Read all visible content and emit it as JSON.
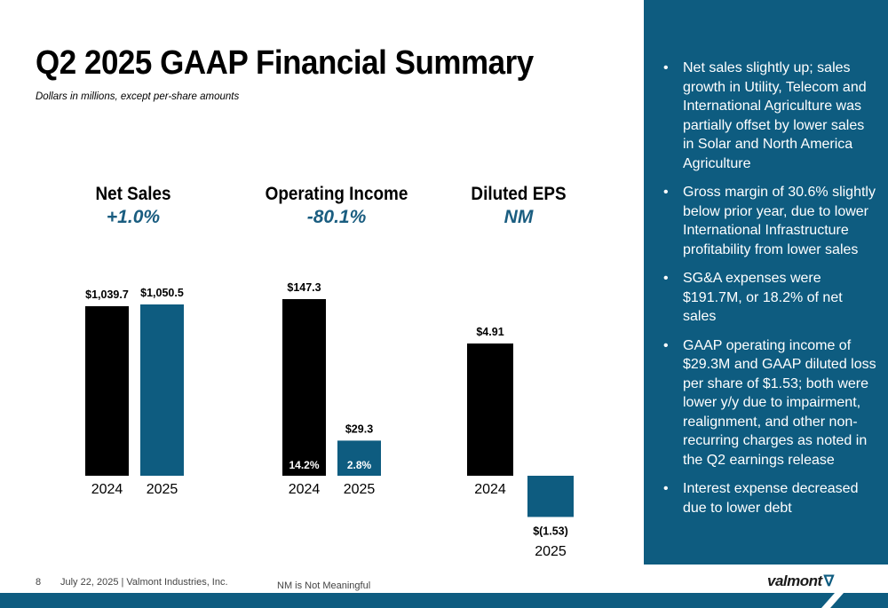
{
  "title": "Q2 2025 GAAP Financial Summary",
  "subtitle": "Dollars in millions, except per-share amounts",
  "chart_data": [
    {
      "type": "bar",
      "title": "Net Sales",
      "change": "+1.0%",
      "categories": [
        "2024",
        "2025"
      ],
      "values": [
        1039.7,
        1050.5
      ],
      "value_labels": [
        "$1,039.7",
        "$1,050.5"
      ],
      "inner_labels": [
        "",
        ""
      ],
      "ylim": [
        0,
        1100
      ]
    },
    {
      "type": "bar",
      "title": "Operating Income",
      "change": "-80.1%",
      "categories": [
        "2024",
        "2025"
      ],
      "values": [
        147.3,
        29.3
      ],
      "value_labels": [
        "$147.3",
        "$29.3"
      ],
      "inner_labels": [
        "14.2%",
        "2.8%"
      ],
      "ylim": [
        0,
        150
      ]
    },
    {
      "type": "bar",
      "title": "Diluted EPS",
      "change": "NM",
      "categories": [
        "2024",
        "2025"
      ],
      "values": [
        4.91,
        -1.53
      ],
      "value_labels": [
        "$4.91",
        "$(1.53)"
      ],
      "inner_labels": [
        "",
        ""
      ],
      "ylim": [
        -1.53,
        4.91
      ]
    }
  ],
  "bullets": [
    "Net sales slightly up; sales growth in Utility, Telecom and International Agriculture was partially offset by lower sales in Solar and North America Agriculture",
    "Gross margin of 30.6% slightly below prior year, due to lower International Infrastructure profitability from lower sales",
    "SG&A expenses were $191.7M, or 18.2% of net sales",
    "GAAP operating income of $29.3M and GAAP diluted loss per share of $1.53; both were lower y/y due to impairment, realignment, and other non-recurring charges as noted in the Q2 earnings release",
    "Interest expense decreased due to lower debt"
  ],
  "footer": {
    "page_number": "8",
    "date_company": "July 22, 2025  | Valmont Industries, Inc.",
    "footnote": "NM is Not Meaningful",
    "logo_text": "valmont",
    "logo_mark": "∇"
  },
  "colors": {
    "bar_prior": "#000000",
    "bar_current": "#0e5c80",
    "accent": "#1a5d80",
    "sidebar": "#0e5c80"
  }
}
